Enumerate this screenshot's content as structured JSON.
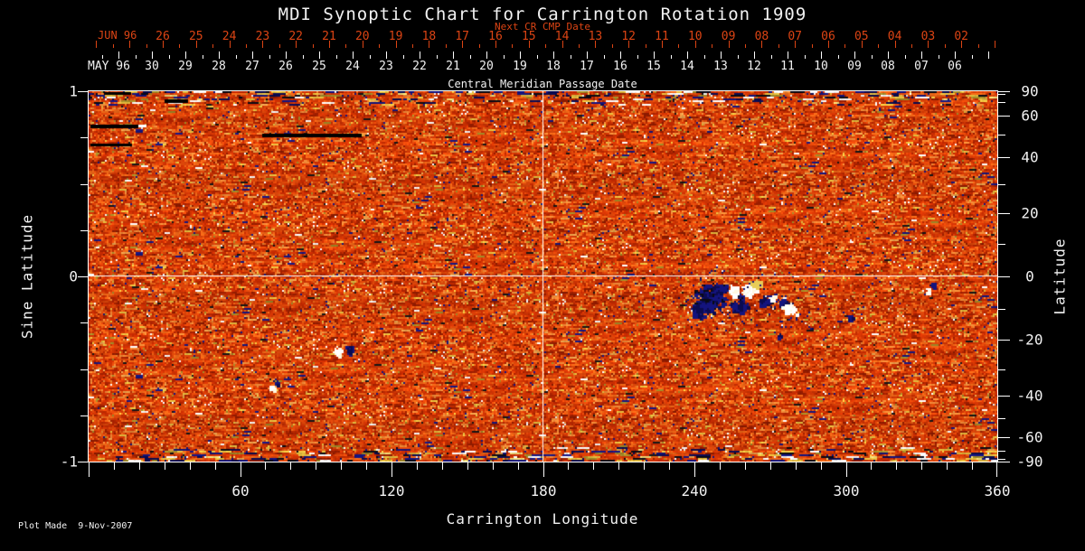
{
  "title": "MDI Synoptic Chart for Carrington Rotation 1909",
  "top_axis": {
    "next_cr_label": "Next CR CMP Date",
    "next_cr_month": "JUN 96",
    "next_cr_days": [
      "26",
      "25",
      "24",
      "23",
      "22",
      "21",
      "20",
      "19",
      "18",
      "17",
      "16",
      "15",
      "14",
      "13",
      "12",
      "11",
      "10",
      "09",
      "08",
      "07",
      "06",
      "05",
      "04",
      "03",
      "02"
    ],
    "cmp_month": "MAY 96",
    "cmp_days": [
      "30",
      "29",
      "28",
      "27",
      "26",
      "25",
      "24",
      "23",
      "22",
      "21",
      "20",
      "19",
      "18",
      "17",
      "16",
      "15",
      "14",
      "13",
      "12",
      "11",
      "10",
      "09",
      "08",
      "07",
      "06"
    ],
    "axis_title": "Central Meridian Passage Date"
  },
  "left_axis": {
    "title": "Sine Latitude",
    "labels": [
      "1",
      "0",
      "-1"
    ]
  },
  "right_axis": {
    "title": "Latitude",
    "labels": [
      "90",
      "60",
      "40",
      "20",
      "0",
      "-20",
      "-40",
      "-60",
      "-90"
    ]
  },
  "bottom_axis": {
    "title": "Carrington Longitude",
    "labels": [
      "60",
      "120",
      "180",
      "240",
      "300",
      "360"
    ]
  },
  "footer": {
    "plot_made": "Plot Made  9-Nov-2007"
  },
  "colors": {
    "background": "#000000",
    "axis_white": "#f2f2f2",
    "date_red": "#dc4414",
    "quiet_sun_orange": "#d84510",
    "flux_positive_white": "#ffffff",
    "flux_negative_navy": "#14147e"
  },
  "chart_data": {
    "type": "heatmap",
    "title": "MDI Synoptic Chart for Carrington Rotation 1909",
    "xlabel": "Carrington Longitude",
    "ylabel_left": "Sine Latitude",
    "ylabel_right": "Latitude",
    "x_range_deg": [
      0,
      360
    ],
    "y_range_sine": [
      -1,
      1
    ],
    "x_major_ticks_deg": [
      60,
      120,
      180,
      240,
      300,
      360
    ],
    "x_minor_step_deg": 10,
    "left_sine_ticks": [
      1,
      0.75,
      0.5,
      0.25,
      0,
      -0.25,
      -0.5,
      -0.75,
      -1
    ],
    "left_labeled_sines": [
      1,
      0,
      -1
    ],
    "right_lat_ticks_step_deg": 10,
    "right_labeled_lats_deg": [
      90,
      60,
      40,
      20,
      0,
      -20,
      -40,
      -60,
      -90
    ],
    "top_axis_next_cr_cmp_days_jun96": [
      26,
      25,
      24,
      23,
      22,
      21,
      20,
      19,
      18,
      17,
      16,
      15,
      14,
      13,
      12,
      11,
      10,
      9,
      8,
      7,
      6,
      5,
      4,
      3,
      2
    ],
    "top_axis_cmp_days_may96": [
      30,
      29,
      28,
      27,
      26,
      25,
      24,
      23,
      22,
      21,
      20,
      19,
      18,
      17,
      16,
      15,
      14,
      13,
      12,
      11,
      10,
      9,
      8,
      7,
      6
    ],
    "gridlines": {
      "horizontal_at_sine": 0,
      "vertical_at_longitude_deg": 180
    },
    "field_description": "Line-of-sight photospheric magnetic flux magnetogram: speckled orange/red quiet-sun noise; white = positive polarity flux, dark blue/black = negative polarity flux; noisier blue/yellow/white streaked bands along the top and bottom (polar) edges.",
    "features": [
      {
        "kind": "bipolar-active-region",
        "longitude_deg": [
          238,
          282
        ],
        "latitude_deg": [
          -18,
          -2
        ],
        "note": "Main active region: large dark negative cluster near 245 deg, bright positive plage near 258 deg, secondary dark+bright pair near 270-278 deg, just south of the equator line."
      },
      {
        "kind": "small-bipole",
        "longitude_deg": 99,
        "latitude_deg": -24
      },
      {
        "kind": "small-bipole",
        "longitude_deg": 73,
        "latitude_deg": -37
      },
      {
        "kind": "small-bipole",
        "longitude_deg": 333,
        "latitude_deg": -5
      },
      {
        "kind": "data-gap-bar",
        "longitude_deg": [
          30,
          39
        ],
        "latitude_deg": 86,
        "note": "black missing-data bar, upper left"
      },
      {
        "kind": "data-gap-bar",
        "longitude_deg": [
          0,
          20
        ],
        "latitude_deg": 72,
        "note": "black bar with small white tip at right end"
      },
      {
        "kind": "data-gap-bar",
        "longitude_deg": [
          0,
          17
        ],
        "latitude_deg": 62
      },
      {
        "kind": "data-gap-streak",
        "longitude_deg": [
          69,
          108
        ],
        "latitude_deg": 67
      },
      {
        "kind": "polar-noise-bands",
        "note": "dense dark-blue/yellow/white horizontal speckle streaks at |latitude| > 70 deg"
      }
    ]
  }
}
